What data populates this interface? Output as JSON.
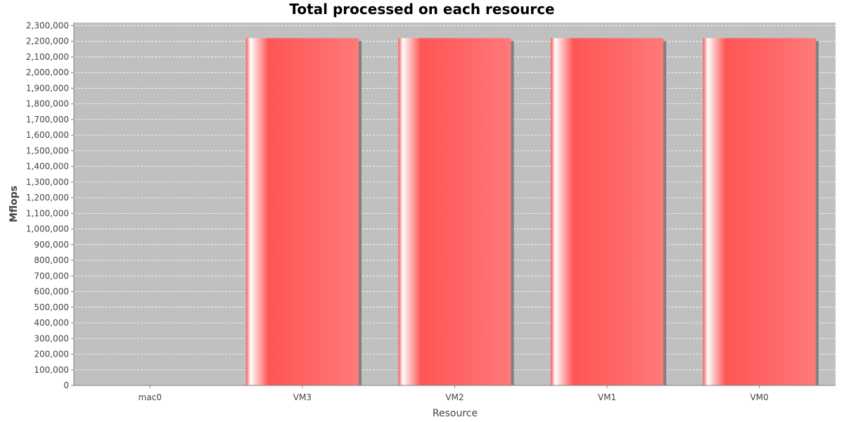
{
  "colors": {
    "plot_background": "#c0c0c0",
    "bar_fill": "#ff5555",
    "bar_highlight": "#ffffff",
    "bar_shadow": "#808080",
    "gridline": "#ffffff",
    "axis_line": "#808080"
  },
  "chart_data": {
    "type": "bar",
    "title": "Total processed on each resource",
    "xlabel": "Resource",
    "ylabel": "Mflops",
    "categories": [
      "mac0",
      "VM3",
      "VM2",
      "VM1",
      "VM0"
    ],
    "values": [
      0,
      2220000,
      2220000,
      2220000,
      2220000
    ],
    "ylim": [
      0,
      2320000
    ],
    "yticks": [
      0,
      100000,
      200000,
      300000,
      400000,
      500000,
      600000,
      700000,
      800000,
      900000,
      1000000,
      1100000,
      1200000,
      1300000,
      1400000,
      1500000,
      1600000,
      1700000,
      1800000,
      1900000,
      2000000,
      2100000,
      2200000,
      2300000
    ],
    "ytick_labels": [
      "0",
      "100,000",
      "200,000",
      "300,000",
      "400,000",
      "500,000",
      "600,000",
      "700,000",
      "800,000",
      "900,000",
      "1,000,000",
      "1,100,000",
      "1,200,000",
      "1,300,000",
      "1,400,000",
      "1,500,000",
      "1,600,000",
      "1,700,000",
      "1,800,000",
      "1,900,000",
      "2,000,000",
      "2,100,000",
      "2,200,000",
      "2,300,000"
    ],
    "grid": true,
    "legend": "none"
  }
}
